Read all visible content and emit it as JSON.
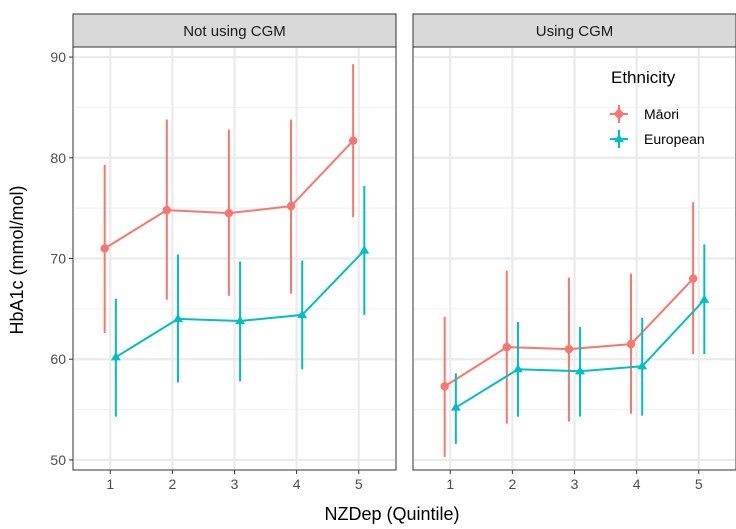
{
  "chart_data": {
    "type": "line",
    "xlabel": "NZDep (Quintile)",
    "ylabel": "HbA1c (mmol/mol)",
    "x": [
      1,
      2,
      3,
      4,
      5
    ],
    "x_ticks": [
      "1",
      "2",
      "3",
      "4",
      "5"
    ],
    "y_ticks": [
      "50",
      "60",
      "70",
      "80",
      "90"
    ],
    "ylim": [
      49,
      91
    ],
    "grid": true,
    "legend": {
      "title": "Ethnicity",
      "placement": "top-right",
      "items": [
        {
          "label": "Māori",
          "color": "#F8766D",
          "shape": "circle"
        },
        {
          "label": "European",
          "color": "#00BFC4",
          "shape": "triangle"
        }
      ]
    },
    "panels": [
      {
        "title": "Not using CGM",
        "series": [
          {
            "name": "Māori",
            "color": "#F8766D",
            "shape": "circle",
            "values": [
              71.0,
              74.8,
              74.5,
              75.2,
              81.7
            ],
            "lower": [
              62.6,
              65.9,
              66.3,
              66.5,
              74.1
            ],
            "upper": [
              79.3,
              83.8,
              82.8,
              83.8,
              89.3
            ]
          },
          {
            "name": "European",
            "color": "#00BFC4",
            "shape": "triangle",
            "values": [
              60.2,
              64.0,
              63.8,
              64.4,
              70.8
            ],
            "lower": [
              54.3,
              57.7,
              57.8,
              59.0,
              64.4
            ],
            "upper": [
              66.0,
              70.4,
              69.7,
              69.8,
              77.2
            ]
          }
        ]
      },
      {
        "title": "Using CGM",
        "series": [
          {
            "name": "Māori",
            "color": "#F8766D",
            "shape": "circle",
            "values": [
              57.3,
              61.2,
              61.0,
              61.5,
              68.0
            ],
            "lower": [
              50.3,
              53.6,
              53.8,
              54.6,
              60.5
            ],
            "upper": [
              64.2,
              68.8,
              68.1,
              68.5,
              75.6
            ]
          },
          {
            "name": "European",
            "color": "#00BFC4",
            "shape": "triangle",
            "values": [
              55.2,
              59.0,
              58.8,
              59.3,
              65.9
            ],
            "lower": [
              51.6,
              54.3,
              54.3,
              54.4,
              60.5
            ],
            "upper": [
              58.6,
              63.7,
              63.2,
              64.1,
              71.4
            ]
          }
        ]
      }
    ]
  }
}
